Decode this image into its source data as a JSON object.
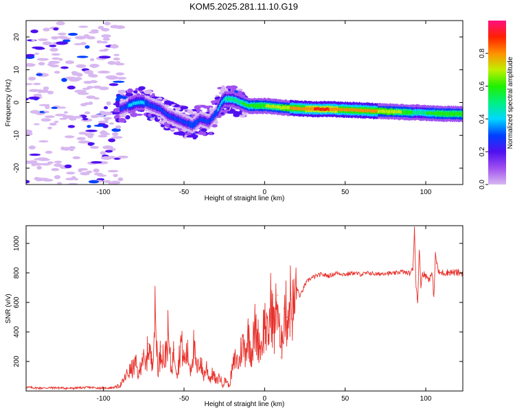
{
  "title": "KOM5.2025.281.11.10.G19",
  "chart_data": [
    {
      "type": "heatmap",
      "xlabel": "Height of straight line (km)",
      "ylabel": "Frequency (Hz)",
      "xlim": [
        -148,
        123
      ],
      "ylim": [
        -25,
        25
      ],
      "xticks": [
        -100,
        -50,
        0,
        50,
        100
      ],
      "xtick_labels": [
        "-100",
        "-50",
        "0",
        "50",
        "100"
      ],
      "yticks": [
        -20,
        -10,
        0,
        10,
        20
      ],
      "ytick_labels": [
        "-20",
        "-10",
        "0",
        "10",
        "20"
      ],
      "colorbar": {
        "label": "Normalized spectral amplitude",
        "range": [
          0,
          1
        ],
        "ticks": [
          0.0,
          0.2,
          0.4,
          0.6,
          0.8
        ],
        "tick_labels": [
          "0.0",
          "0.2",
          "0.4",
          "0.6",
          "0.8"
        ],
        "colors": [
          "#d8b8f0",
          "#a050f0",
          "#5010f0",
          "#0040ff",
          "#00d8ff",
          "#00f080",
          "#20f000",
          "#c0f000",
          "#ff9000",
          "#ff2000",
          "#ff1080"
        ]
      },
      "ridge": {
        "x": [
          -90,
          -85,
          -80,
          -75,
          -70,
          -65,
          -60,
          -55,
          -50,
          -45,
          -40,
          -35,
          -30,
          -27,
          -25,
          -20,
          -15,
          -10,
          -5,
          0,
          10,
          20,
          30,
          40,
          50,
          60,
          70,
          80,
          90,
          95,
          100,
          110,
          123
        ],
        "freq": [
          -2,
          -1,
          0,
          0,
          -1,
          -2,
          -4,
          -5,
          -6,
          -7,
          -5,
          -6,
          -3,
          0,
          1,
          1,
          0,
          -1,
          -1,
          -1,
          -1.5,
          -1.8,
          -2,
          -2,
          -2.2,
          -2.4,
          -2.6,
          -2.8,
          -3,
          -3,
          -3.2,
          -3.4,
          -3.5
        ],
        "amplitude": [
          0.3,
          0.4,
          0.45,
          0.4,
          0.35,
          0.3,
          0.3,
          0.3,
          0.35,
          0.4,
          0.35,
          0.35,
          0.4,
          0.45,
          0.5,
          0.55,
          0.6,
          0.6,
          0.65,
          0.7,
          0.75,
          0.85,
          0.9,
          0.9,
          0.85,
          0.85,
          0.8,
          0.75,
          0.65,
          0.5,
          0.6,
          0.65,
          0.7
        ]
      }
    },
    {
      "type": "line",
      "xlabel": "Height of straight line (km)",
      "ylabel": "SNR (v/v)",
      "xlim": [
        -148,
        123
      ],
      "ylim": [
        0,
        1120
      ],
      "xticks": [
        -100,
        -50,
        0,
        50,
        100
      ],
      "xtick_labels": [
        "-100",
        "-50",
        "0",
        "50",
        "100"
      ],
      "yticks": [
        200,
        400,
        600,
        800,
        1000
      ],
      "ytick_labels": [
        "200",
        "400",
        "600",
        "800",
        "1000"
      ],
      "series": [
        {
          "color": "#e8302a",
          "x": [
            -148,
            -140,
            -130,
            -120,
            -110,
            -100,
            -95,
            -92,
            -90,
            -88,
            -85,
            -82,
            -80,
            -78,
            -76,
            -74,
            -72,
            -70,
            -68,
            -66,
            -64,
            -62,
            -60,
            -58,
            -56,
            -54,
            -52,
            -50,
            -48,
            -46,
            -44,
            -42,
            -40,
            -38,
            -36,
            -34,
            -32,
            -30,
            -28,
            -26,
            -24,
            -22,
            -20,
            -18,
            -16,
            -14,
            -12,
            -10,
            -8,
            -6,
            -4,
            -2,
            0,
            2,
            4,
            6,
            8,
            10,
            12,
            14,
            16,
            18,
            20,
            22,
            25,
            28,
            30,
            35,
            40,
            45,
            50,
            55,
            60,
            65,
            70,
            75,
            80,
            85,
            88,
            90,
            92,
            93,
            94,
            95,
            96,
            97,
            98,
            100,
            102,
            104,
            105,
            106,
            108,
            110,
            115,
            120,
            123
          ],
          "y": [
            25,
            20,
            22,
            18,
            24,
            20,
            22,
            28,
            35,
            60,
            120,
            150,
            180,
            100,
            250,
            150,
            320,
            180,
            500,
            150,
            300,
            200,
            380,
            150,
            280,
            120,
            340,
            200,
            260,
            150,
            300,
            130,
            220,
            100,
            160,
            80,
            120,
            60,
            100,
            40,
            80,
            30,
            150,
            220,
            180,
            320,
            280,
            380,
            260,
            420,
            350,
            300,
            480,
            340,
            600,
            400,
            650,
            230,
            560,
            500,
            620,
            540,
            700,
            640,
            720,
            760,
            770,
            790,
            780,
            800,
            790,
            800,
            790,
            800,
            790,
            800,
            795,
            810,
            800,
            800,
            820,
            1110,
            700,
            620,
            950,
            720,
            800,
            780,
            760,
            790,
            640,
            920,
            800,
            800,
            805,
            800,
            800
          ]
        }
      ]
    }
  ]
}
